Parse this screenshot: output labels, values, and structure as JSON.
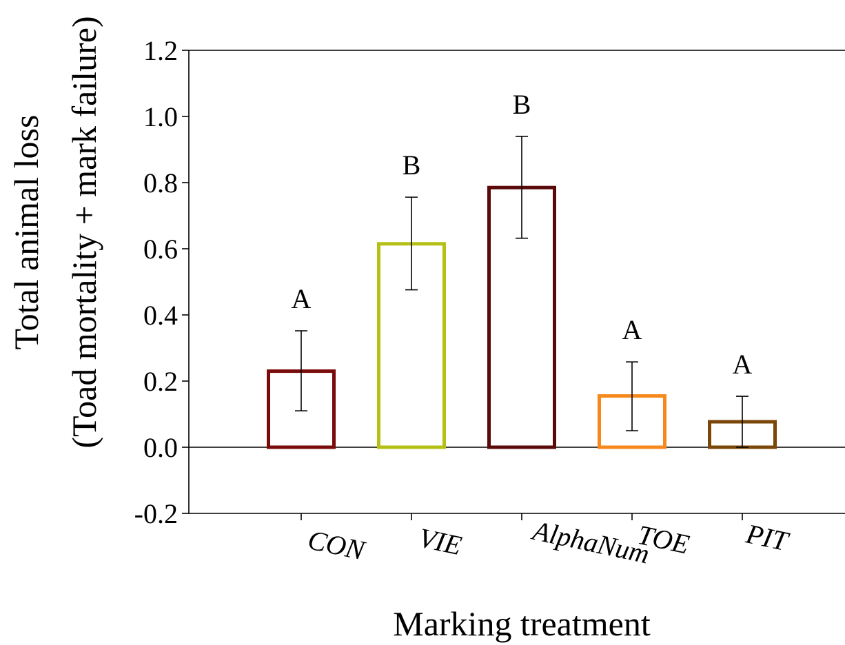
{
  "chart_data": {
    "type": "bar",
    "categories": [
      "CON",
      "VIE",
      "AlphaNum",
      "TOE",
      "PIT"
    ],
    "values": [
      0.23,
      0.615,
      0.785,
      0.155,
      0.077
    ],
    "error_upper": [
      0.352,
      0.756,
      0.94,
      0.258,
      0.154
    ],
    "error_lower": [
      0.11,
      0.476,
      0.632,
      0.05,
      0.0
    ],
    "significance": [
      "A",
      "B",
      "B",
      "A",
      "A"
    ],
    "bar_colors": [
      "#7a0b0b",
      "#b5bf14",
      "#5a0a0a",
      "#f7891c",
      "#7a4708"
    ],
    "ylim": [
      -0.2,
      1.2
    ],
    "yticks": [
      "-0.2",
      "0.0",
      "0.2",
      "0.4",
      "0.6",
      "0.8",
      "1.0",
      "1.2"
    ],
    "xlabel": "Marking treatment",
    "ylabel_line1": "Total animal loss",
    "ylabel_line2": "(Toad mortality + mark failure)",
    "grid": false,
    "legend": "none"
  }
}
